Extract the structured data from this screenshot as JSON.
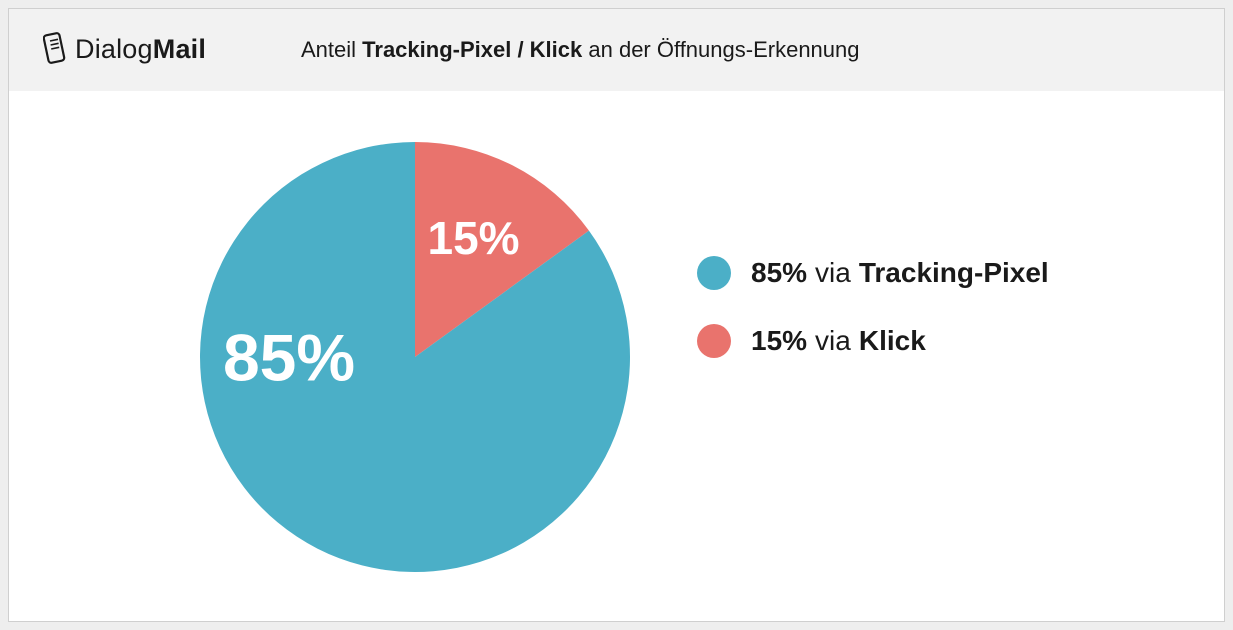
{
  "header": {
    "brand_light": "Dialog",
    "brand_bold": "Mail",
    "title_part1": "Anteil ",
    "title_bold1": "Tracking-Pixel / Klick",
    "title_part2": " an der Öffnungs-Erkennung"
  },
  "chart_data": {
    "type": "pie",
    "title": "Anteil Tracking-Pixel / Klick an der Öffnungs-Erkennung",
    "slices": [
      {
        "name": "Tracking-Pixel",
        "value": 85,
        "label": "85%",
        "color": "#4bafc7"
      },
      {
        "name": "Klick",
        "value": 15,
        "label": "15%",
        "color": "#e9736d"
      }
    ],
    "legend_placement": "right"
  },
  "legend": [
    {
      "pct": "85%",
      "via": "via",
      "name": "Tracking-Pixel",
      "color": "#4bafc7"
    },
    {
      "pct": "15%",
      "via": "via",
      "name": "Klick",
      "color": "#e9736d"
    }
  ]
}
